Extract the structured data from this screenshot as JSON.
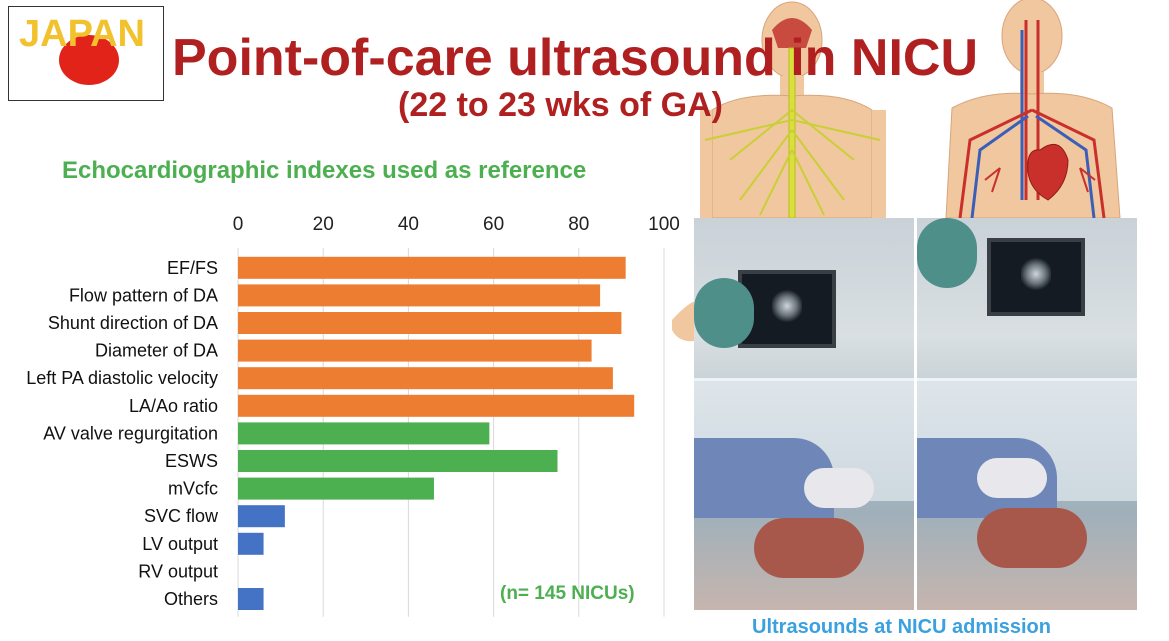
{
  "flag": {
    "label": "JAPAN",
    "sun_color": "#e2231a",
    "text_color": "#f2c12e"
  },
  "slide": {
    "title": "Point-of-care ultrasound in NICU",
    "subtitle": "(22 to 23 wks of GA)",
    "title_color": "#b02020"
  },
  "chart_data": {
    "type": "bar",
    "orientation": "horizontal",
    "title": "Echocardiographic indexes used as reference",
    "xlim": [
      0,
      100
    ],
    "xticks": [
      0,
      20,
      40,
      60,
      80,
      100
    ],
    "grid": true,
    "legend": "none",
    "categories": [
      "EF/FS",
      "Flow pattern of DA",
      "Shunt direction of DA",
      "Diameter of DA",
      "Left PA diastolic velocity",
      "LA/Ao ratio",
      "AV valve regurgitation",
      "ESWS",
      "mVcfc",
      "SVC flow",
      "LV output",
      "RV output",
      "Others"
    ],
    "values": [
      91,
      85,
      90,
      83,
      88,
      93,
      59,
      75,
      46,
      11,
      6,
      0,
      6
    ],
    "colors": [
      "#ed7d31",
      "#ed7d31",
      "#ed7d31",
      "#ed7d31",
      "#ed7d31",
      "#ed7d31",
      "#4caf50",
      "#4caf50",
      "#4caf50",
      "#4472c4",
      "#4472c4",
      "#4472c4",
      "#4472c4"
    ],
    "annotation": "(n= 145 NICUs)"
  },
  "photos": {
    "caption": "Ultrasounds at NICU admission"
  },
  "icons": {
    "nervous_system": "nervous-system-figure-icon",
    "circulatory_system": "circulatory-system-figure-icon"
  }
}
